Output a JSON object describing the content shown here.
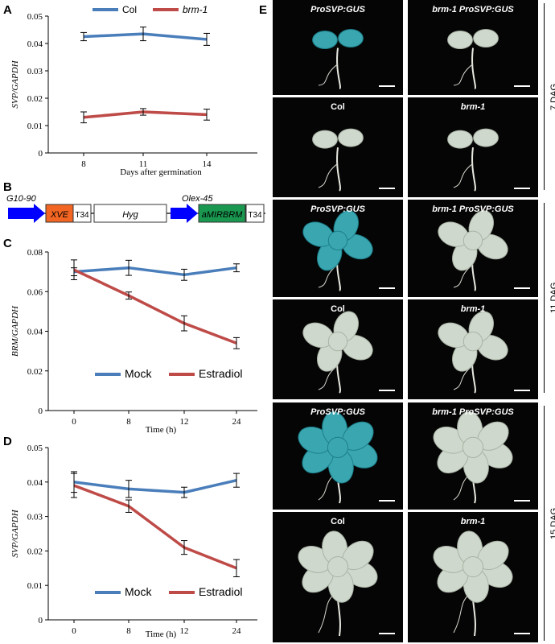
{
  "figure": {
    "panel_letters": {
      "A": "A",
      "B": "B",
      "C": "C",
      "D": "D",
      "E": "E"
    },
    "colors": {
      "col": "#4a7ebb",
      "brm1": "#be4b48",
      "mock": "#4a7ebb",
      "estradiol": "#be4b48",
      "arrow": "#0000ff",
      "xve": "#f26522",
      "amirbrm": "#1a9850",
      "gus": "#2fa7b4"
    }
  },
  "panel_b": {
    "promoter1": "G10-90",
    "promoter2": "Olex-45",
    "xve": "XVE",
    "t34a": "T34",
    "hyg": "Hyg",
    "amirbrm": "aMIRBRM",
    "t34b": "T34"
  },
  "chart_data": [
    {
      "type": "line",
      "panel": "A",
      "categories": [
        "8",
        "11",
        "14"
      ],
      "series": [
        {
          "name": "Col",
          "values": [
            0.0425,
            0.0435,
            0.0415
          ],
          "errors": [
            0.0015,
            0.0025,
            0.0022
          ]
        },
        {
          "name": "brm-1",
          "values": [
            0.013,
            0.015,
            0.014
          ],
          "errors": [
            0.002,
            0.0012,
            0.002
          ]
        }
      ],
      "xlabel": "Days after germination",
      "ylabel": "SVP/GAPDH",
      "ylim": [
        0,
        0.05
      ],
      "yticks": [
        "0",
        "0.01",
        "0.02",
        "0.03",
        "0.04",
        "0.05"
      ],
      "legend": "top"
    },
    {
      "type": "line",
      "panel": "C",
      "categories": [
        "0",
        "8",
        "12",
        "24"
      ],
      "series": [
        {
          "name": "Mock",
          "values": [
            0.07,
            0.072,
            0.0685,
            0.072
          ],
          "errors": [
            0.002,
            0.0038,
            0.0028,
            0.002
          ]
        },
        {
          "name": "Estradiol",
          "values": [
            0.071,
            0.058,
            0.044,
            0.034
          ],
          "errors": [
            0.005,
            0.0018,
            0.0038,
            0.0028
          ]
        }
      ],
      "xlabel": "Time (h)",
      "ylabel": "BRM/GAPDH",
      "ylim": [
        0,
        0.08
      ],
      "yticks": [
        "0",
        "0.02",
        "0.04",
        "0.06",
        "0.08"
      ],
      "legend": "bottom"
    },
    {
      "type": "line",
      "panel": "D",
      "categories": [
        "0",
        "8",
        "12",
        "24"
      ],
      "series": [
        {
          "name": "Mock",
          "values": [
            0.04,
            0.038,
            0.037,
            0.0405
          ],
          "errors": [
            0.003,
            0.0025,
            0.0015,
            0.002
          ]
        },
        {
          "name": "Estradiol",
          "values": [
            0.039,
            0.033,
            0.021,
            0.015
          ],
          "errors": [
            0.0035,
            0.0018,
            0.002,
            0.0025
          ]
        }
      ],
      "xlabel": "Time (h)",
      "ylabel": "SVP/GAPDH",
      "ylim": [
        0,
        0.05
      ],
      "yticks": [
        "0",
        "0.01",
        "0.02",
        "0.03",
        "0.04",
        "0.05"
      ],
      "legend": "bottom"
    }
  ],
  "panel_e": {
    "cells": [
      {
        "label": "ProSVP:GUS",
        "italic": true,
        "stage": 0,
        "stained": true
      },
      {
        "label": "brm-1 ProSVP:GUS",
        "italic": true,
        "stage": 0,
        "stained": false
      },
      {
        "label": "Col",
        "italic": false,
        "stage": 0,
        "stained": false
      },
      {
        "label": "brm-1",
        "italic": true,
        "stage": 0,
        "stained": false
      },
      {
        "label": "ProSVP:GUS",
        "italic": true,
        "stage": 1,
        "stained": true
      },
      {
        "label": "brm-1 ProSVP:GUS",
        "italic": true,
        "stage": 1,
        "stained": false
      },
      {
        "label": "Col",
        "italic": false,
        "stage": 1,
        "stained": false
      },
      {
        "label": "brm-1",
        "italic": true,
        "stage": 1,
        "stained": false
      },
      {
        "label": "ProSVP:GUS",
        "italic": true,
        "stage": 2,
        "stained": true
      },
      {
        "label": "brm-1 ProSVP:GUS",
        "italic": true,
        "stage": 2,
        "stained": false
      },
      {
        "label": "Col",
        "italic": false,
        "stage": 2,
        "stained": false
      },
      {
        "label": "brm-1",
        "italic": true,
        "stage": 2,
        "stained": false
      }
    ],
    "stages": [
      "7 DAG",
      "11 DAG",
      "15 DAG"
    ]
  }
}
